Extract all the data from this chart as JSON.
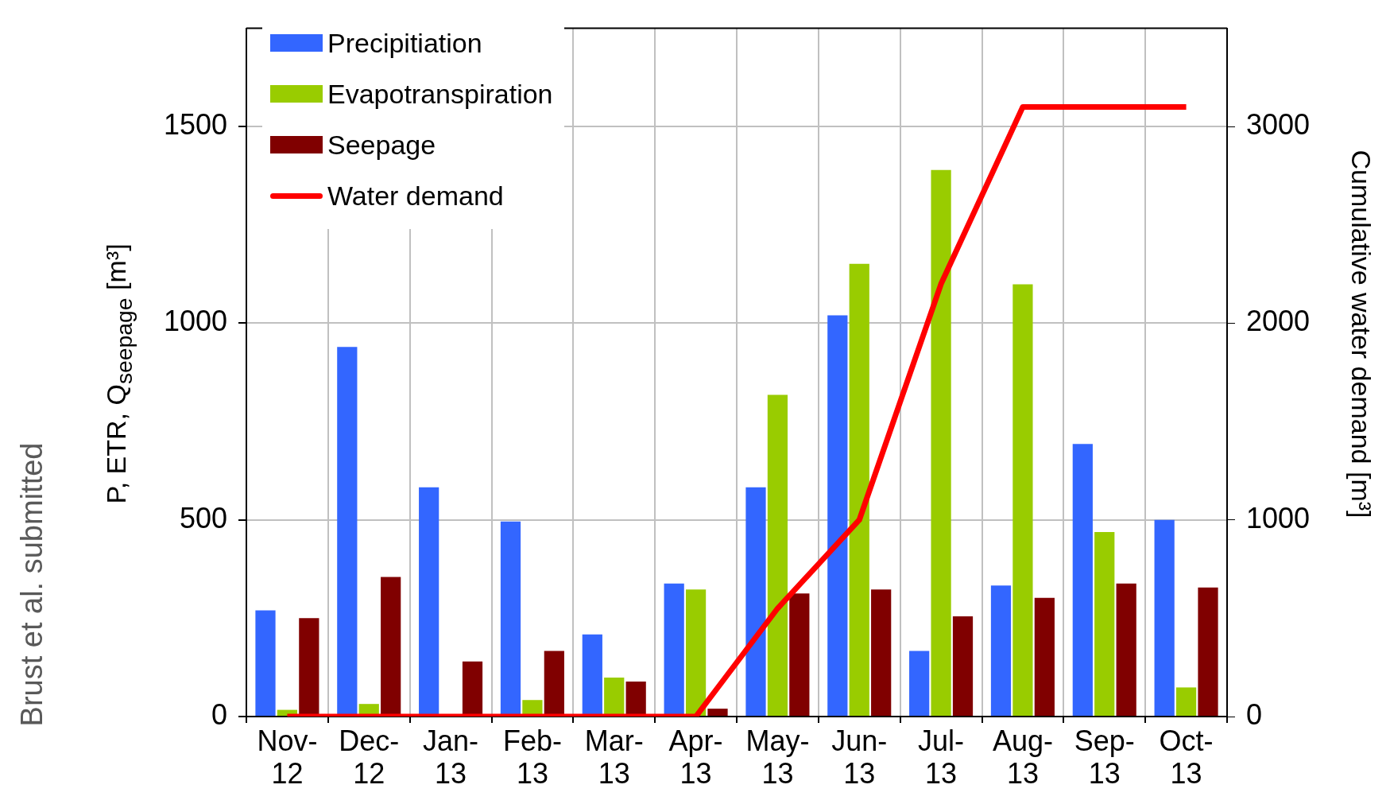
{
  "chart_data": {
    "type": "bar",
    "ylabel": "P, ETR, Q$_{seepage}$ [m³]",
    "y2label": "Cumulative water demand [m³]",
    "annotations": [
      "Brust et al. submitted"
    ],
    "categories": [
      "Nov-12",
      "Dec-12",
      "Jan-13",
      "Feb-13",
      "Mar-13",
      "Apr-13",
      "May-13",
      "Jun-13",
      "Jul-13",
      "Aug-13",
      "Sep-13",
      "Oct-13"
    ],
    "series": [
      {
        "name": "Precipitiation",
        "color": "#3366ff",
        "values": [
          270,
          940,
          583,
          496,
          209,
          338,
          583,
          1020,
          167,
          333,
          693,
          500
        ]
      },
      {
        "name": "Evapotranspiration",
        "color": "#99cc00",
        "values": [
          17,
          32,
          0,
          42,
          99,
          323,
          818,
          1151,
          1390,
          1099,
          469,
          74
        ]
      },
      {
        "name": "Seepage",
        "color": "#800000",
        "values": [
          250,
          355,
          140,
          167,
          89,
          20,
          313,
          323,
          255,
          302,
          338,
          328
        ]
      },
      {
        "name": "Water demand",
        "color": "#ff0000",
        "type": "line",
        "axis": "y2",
        "values": [
          0,
          0,
          0,
          0,
          0,
          0,
          550,
          1000,
          2200,
          3100,
          3100,
          3100
        ]
      }
    ],
    "ylim": [
      0,
      1750
    ],
    "yticks": [
      0,
      500,
      1000,
      1500
    ],
    "y2lim": [
      0,
      3500
    ],
    "y2ticks": [
      0,
      1000,
      2000,
      3000
    ],
    "grid": true,
    "legend": "top left"
  }
}
